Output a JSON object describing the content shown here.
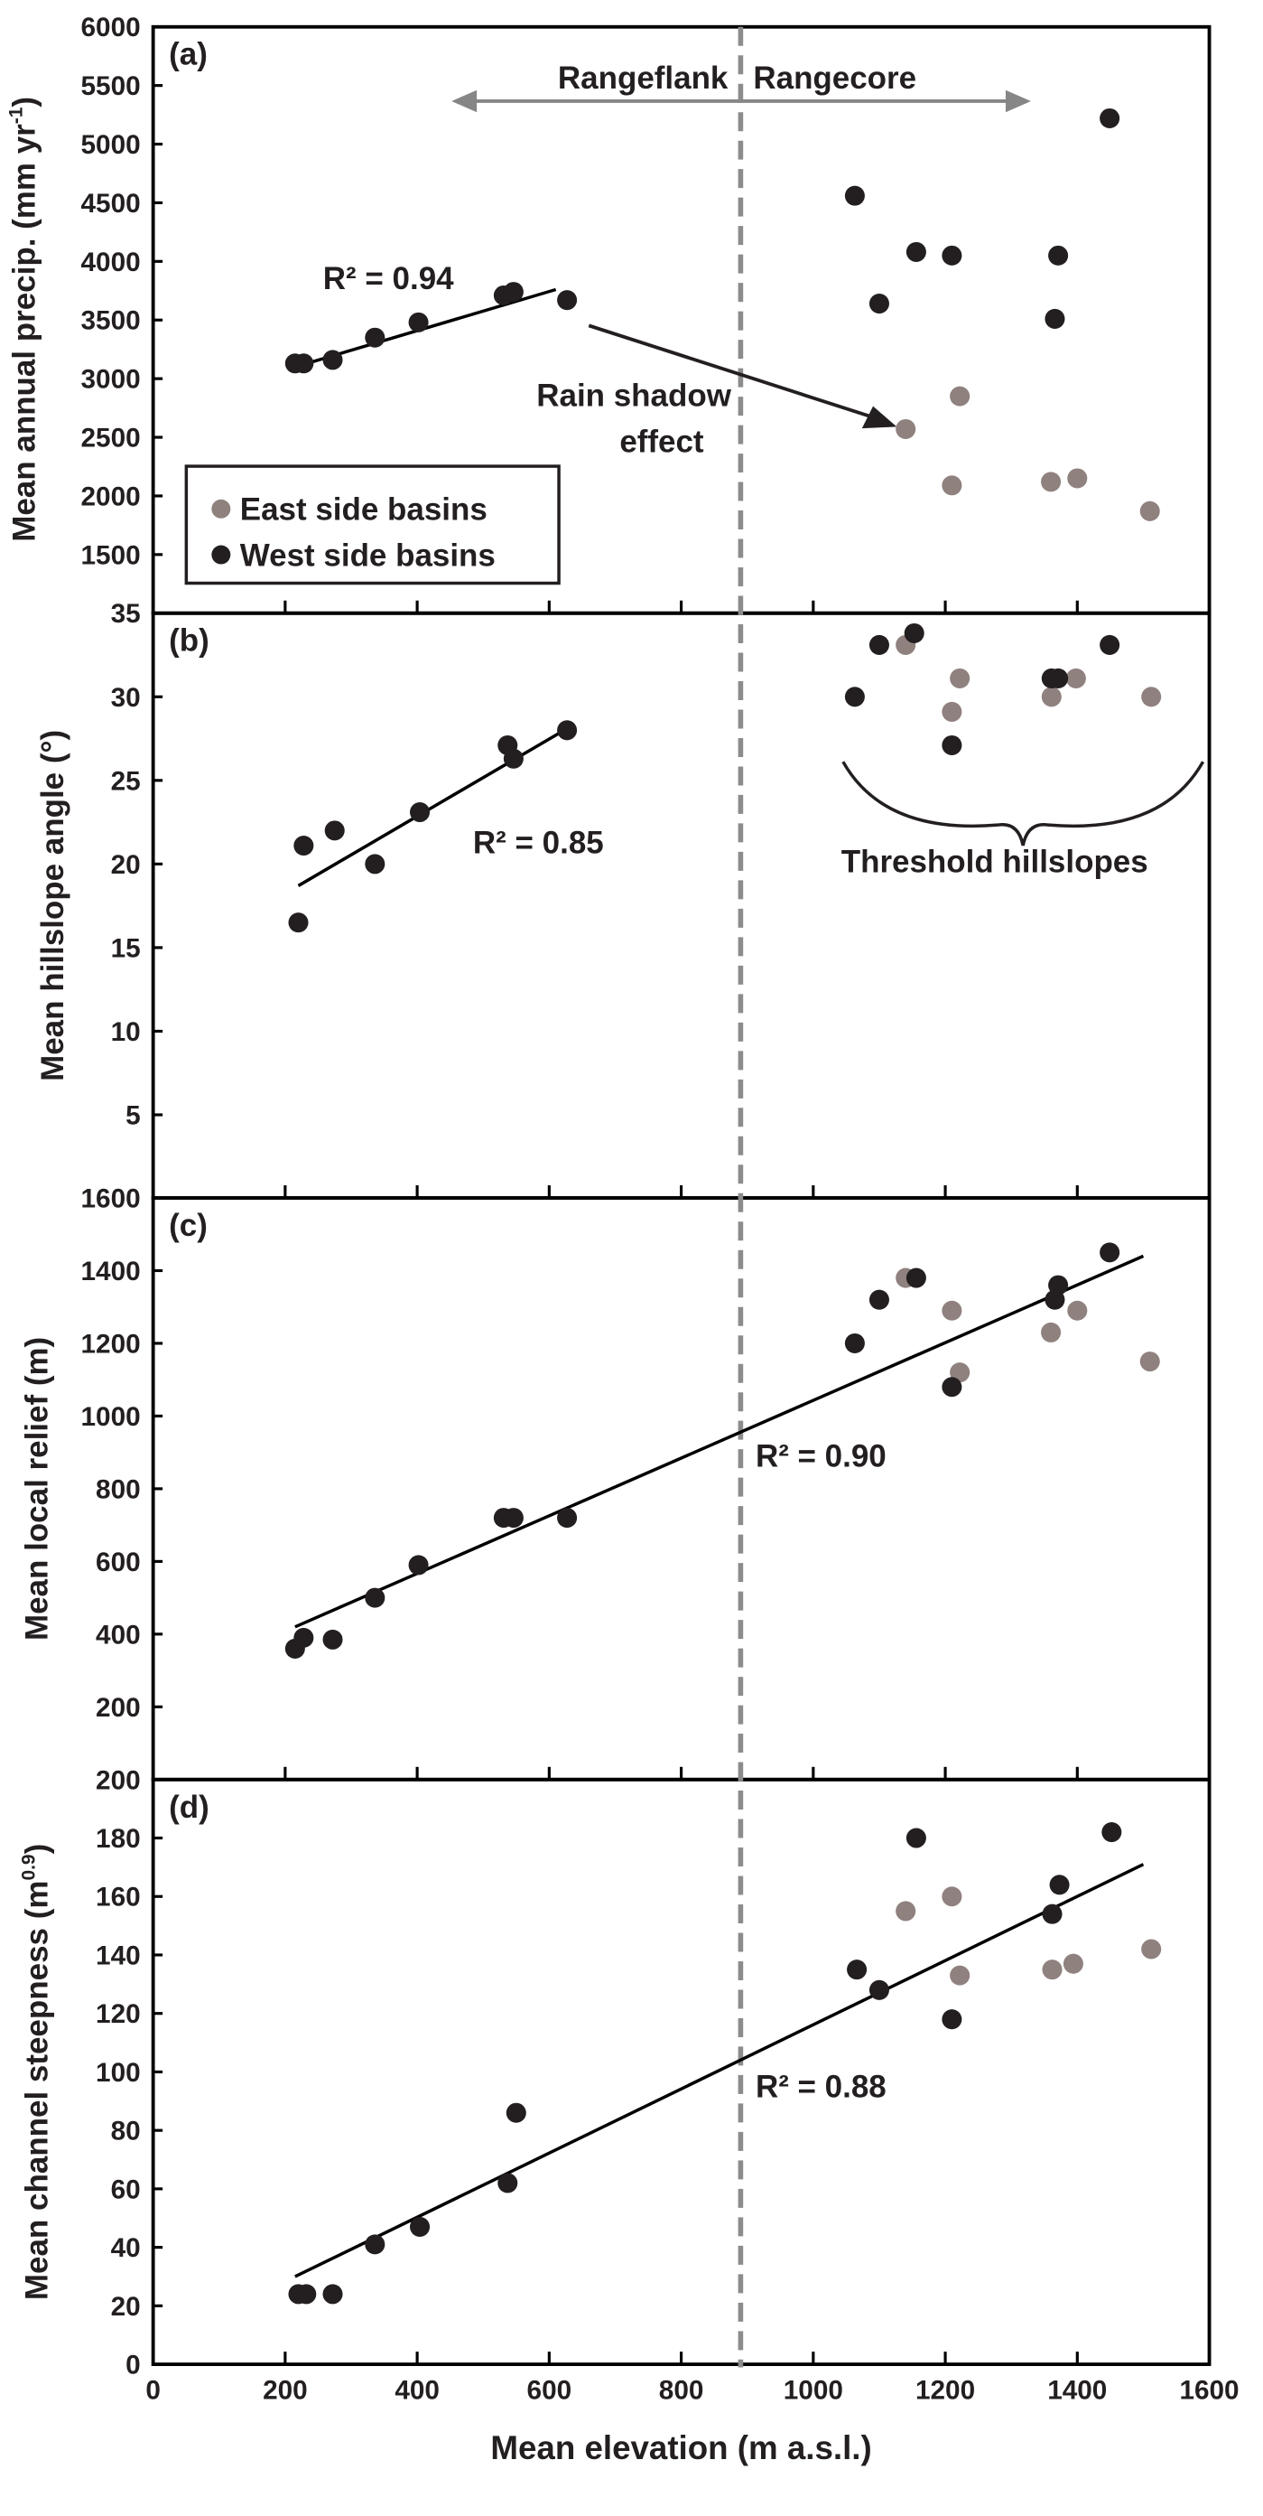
{
  "chart_data": [
    {
      "panel": "(a)",
      "type": "scatter",
      "ylabel": "Mean annual precip. (mm yr",
      "ylabel_sup": "-1",
      "ylabel_close": ")",
      "ylim": [
        1000,
        6000
      ],
      "yticks": [
        "6000",
        "5500",
        "5000",
        "4500",
        "4000",
        "3500",
        "3000",
        "2500",
        "2000",
        "1500"
      ],
      "bottom_tick_label": "35",
      "series": [
        {
          "name": "West side basins",
          "color": "#231f20",
          "x": [
            215,
            228,
            272,
            336,
            402,
            531,
            546,
            627,
            1063,
            1100,
            1156,
            1210,
            1366,
            1371,
            1449
          ],
          "y": [
            3130,
            3130,
            3160,
            3350,
            3480,
            3710,
            3740,
            3670,
            4560,
            3640,
            4080,
            4050,
            3510,
            4050,
            5220
          ]
        },
        {
          "name": "East side basins",
          "color": "#8f817e",
          "x": [
            1140,
            1210,
            1222,
            1360,
            1400,
            1510
          ],
          "y": [
            2570,
            2090,
            2850,
            2120,
            2150,
            1870
          ]
        }
      ],
      "trendline": {
        "x": [
          215,
          610
        ],
        "y": [
          3100,
          3760
        ],
        "label": "R² = 0.94"
      },
      "annotations": {
        "rangeflank": "Rangeflank",
        "rangecore": "Rangecore",
        "rain_shadow_line1": "Rain shadow",
        "rain_shadow_line2": "effect"
      },
      "legend": {
        "placement": "bottom-left",
        "entries": [
          "East side basins",
          "West side basins"
        ]
      }
    },
    {
      "panel": "(b)",
      "type": "scatter",
      "ylabel": "Mean hillslope  angle (°)",
      "ylim": [
        0,
        35
      ],
      "yticks": [
        "35",
        "30",
        "25",
        "20",
        "15",
        "10",
        "5"
      ],
      "bottom_tick_label": "1600",
      "series": [
        {
          "name": "West side basins",
          "color": "#231f20",
          "x": [
            220,
            228,
            275,
            336,
            404,
            537,
            546,
            627,
            1063,
            1100,
            1153,
            1210,
            1361,
            1371,
            1449
          ],
          "y": [
            16.5,
            21.1,
            22,
            20,
            23.1,
            27.1,
            26.3,
            28,
            30,
            33.1,
            33.8,
            27.1,
            31.1,
            31.1,
            33.1
          ]
        },
        {
          "name": "East side basins",
          "color": "#8f817e",
          "x": [
            1140,
            1210,
            1222,
            1361,
            1398,
            1512
          ],
          "y": [
            33.1,
            29.1,
            31.1,
            30,
            31.1,
            30
          ]
        }
      ],
      "trendline": {
        "x": [
          220,
          627
        ],
        "y": [
          18.7,
          28.1
        ],
        "label": "R² = 0.85"
      },
      "annotations": {
        "threshold": "Threshold hillslopes"
      }
    },
    {
      "panel": "(c)",
      "type": "scatter",
      "ylabel": "Mean local relief (m)",
      "ylim": [
        0,
        1600
      ],
      "yticks": [
        "1400",
        "1200",
        "1000",
        "800",
        "600",
        "400",
        "200"
      ],
      "bottom_tick_label": "200",
      "series": [
        {
          "name": "West side basins",
          "color": "#231f20",
          "x": [
            215,
            228,
            272,
            336,
            402,
            531,
            546,
            627,
            1063,
            1100,
            1156,
            1210,
            1366,
            1371,
            1449
          ],
          "y": [
            360,
            390,
            385,
            500,
            590,
            720,
            720,
            720,
            1200,
            1320,
            1380,
            1080,
            1320,
            1360,
            1450
          ]
        },
        {
          "name": "East side basins",
          "color": "#8f817e",
          "x": [
            1140,
            1210,
            1222,
            1360,
            1400,
            1510
          ],
          "y": [
            1380,
            1290,
            1120,
            1230,
            1290,
            1150
          ]
        }
      ],
      "trendline": {
        "x": [
          215,
          1500
        ],
        "y": [
          420,
          1440
        ],
        "label": "R² = 0.90"
      }
    },
    {
      "panel": "(d)",
      "type": "scatter",
      "ylabel": "Mean channel steepness (m",
      "ylabel_sup": "0.9",
      "ylabel_close": ")",
      "ylim": [
        0,
        200
      ],
      "yticks": [
        "180",
        "160",
        "140",
        "120",
        "100",
        "80",
        "60",
        "40",
        "20",
        "0"
      ],
      "xlabel": "Mean elevation (m a.s.l.)",
      "xlim": [
        0,
        1600
      ],
      "xticks": [
        "0",
        "200",
        "400",
        "600",
        "800",
        "1000",
        "1200",
        "1400",
        "1600"
      ],
      "series": [
        {
          "name": "West side basins",
          "color": "#231f20",
          "x": [
            220,
            232,
            272,
            336,
            404,
            537,
            550,
            1066,
            1100,
            1156,
            1210,
            1362,
            1373,
            1452
          ],
          "y": [
            24,
            24,
            24,
            41,
            47,
            62,
            86,
            135,
            128,
            180,
            118,
            154,
            164,
            182
          ]
        },
        {
          "name": "East side basins",
          "color": "#8f817e",
          "x": [
            1140,
            1210,
            1222,
            1362,
            1394,
            1512
          ],
          "y": [
            155,
            160,
            133,
            135,
            137,
            142
          ]
        }
      ],
      "trendline": {
        "x": [
          215,
          1500
        ],
        "y": [
          30,
          171
        ],
        "label": "R² = 0.88"
      }
    }
  ],
  "divider": {
    "x_value": 890,
    "color": "#8c8c8c"
  }
}
